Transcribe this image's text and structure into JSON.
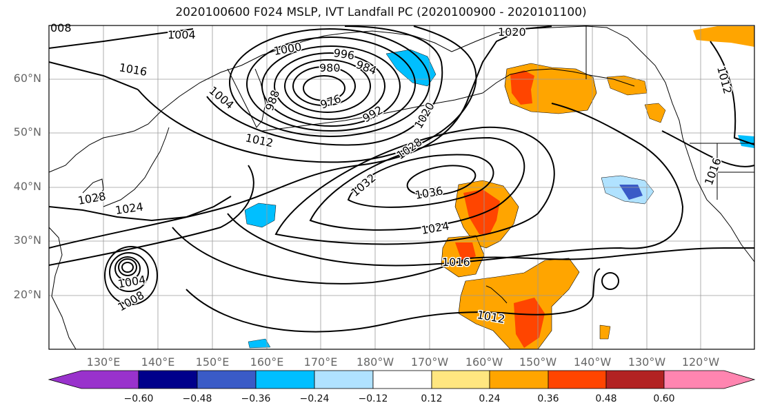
{
  "title": "2020100600 F024 MSLP, IVT Landfall PC (2020100900 - 2020101100)",
  "lat_labels": [
    "60°N",
    "50°N",
    "40°N",
    "30°N",
    "20°N"
  ],
  "lon_labels": [
    "130°E",
    "140°E",
    "150°E",
    "160°E",
    "170°E",
    "180°W",
    "170°W",
    "160°W",
    "150°W",
    "140°W",
    "130°W",
    "120°W"
  ],
  "contour_labels": [
    "1004",
    "1016",
    "1000",
    "996",
    "984",
    "980",
    "1004",
    "988",
    "976",
    "992",
    "1012",
    "1020",
    "1028",
    "1032",
    "1036",
    "1024",
    "1028",
    "1024",
    "1016",
    "1004",
    "1008",
    "1012",
    "1020",
    "1012",
    "1016",
    "008"
  ],
  "colorbar": {
    "ticks": [
      "−0.60",
      "−0.48",
      "−0.36",
      "−0.24",
      "−0.12",
      "0.12",
      "0.24",
      "0.36",
      "0.48",
      "0.60"
    ],
    "colors": [
      "#9932cc",
      "#00008b",
      "#3a5bc7",
      "#00bfff",
      "#b0e2ff",
      "#ffffff",
      "#ffe680",
      "#ffa500",
      "#ff4500",
      "#b22222",
      "#ff85b0"
    ]
  }
}
